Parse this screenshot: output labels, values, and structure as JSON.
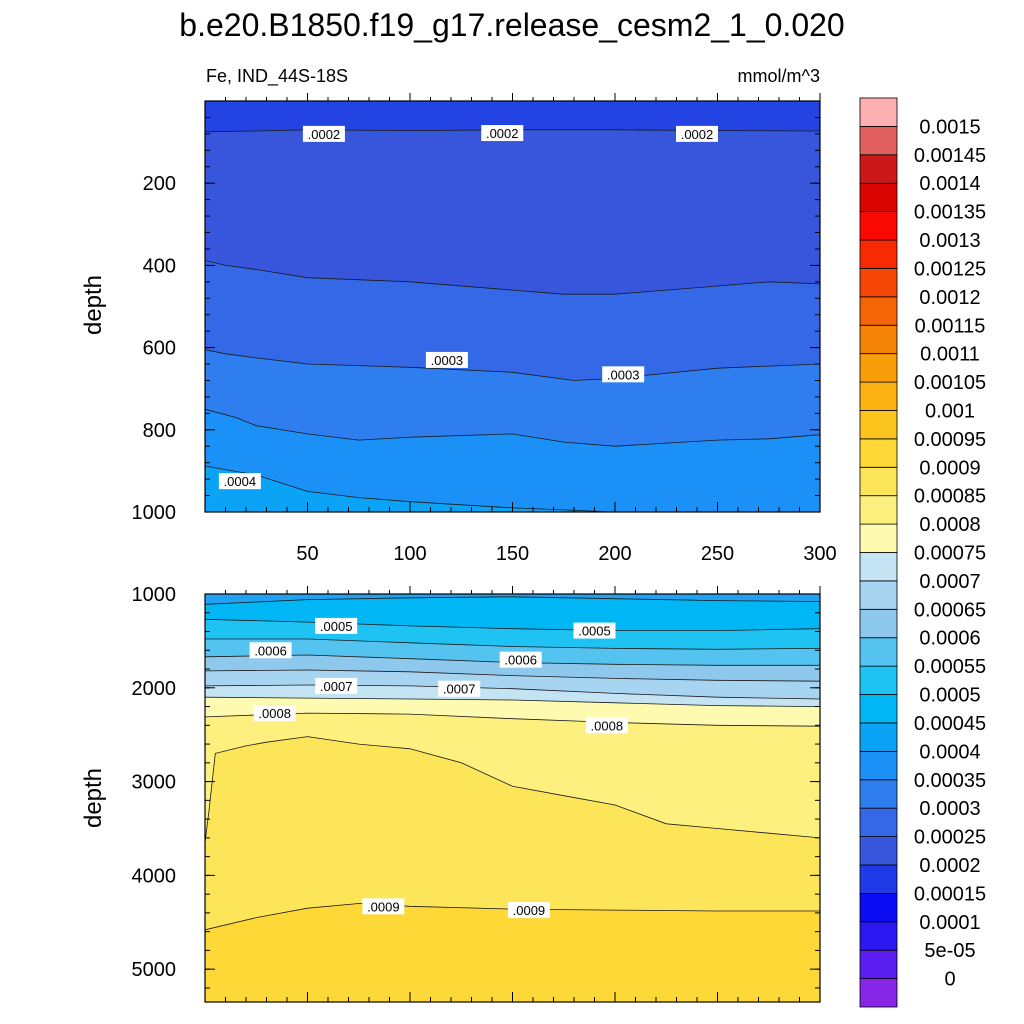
{
  "figure": {
    "title": "b.e20.B1850.f19_g17.release_cesm2_1_0.020",
    "subtitle_left": "Fe, IND_44S-18S",
    "subtitle_right": "mmol/m^3"
  },
  "chart_data": [
    {
      "type": "heatmap",
      "panel": "upper",
      "ylabel": "depth",
      "xlabel": "",
      "xlim": [
        0,
        300
      ],
      "ylim": [
        1000,
        0
      ],
      "x_ticks": [
        50,
        100,
        150,
        200,
        250,
        300
      ],
      "y_ticks": [
        200,
        400,
        600,
        800,
        1000
      ],
      "contours": [
        {
          "level": 0.0002,
          "label": ".0002",
          "points": [
            [
              0,
              75
            ],
            [
              25,
              73
            ],
            [
              50,
              70
            ],
            [
              100,
              72
            ],
            [
              150,
              70
            ],
            [
              200,
              70
            ],
            [
              250,
              72
            ],
            [
              300,
              73
            ]
          ]
        },
        {
          "level": 0.00025,
          "label": "",
          "points": [
            [
              0,
              388
            ],
            [
              10,
              400
            ],
            [
              25,
              410
            ],
            [
              50,
              430
            ],
            [
              100,
              440
            ],
            [
              150,
              460
            ],
            [
              175,
              470
            ],
            [
              200,
              470
            ],
            [
              250,
              450
            ],
            [
              275,
              440
            ],
            [
              300,
              445
            ]
          ]
        },
        {
          "level": 0.0003,
          "label": ".0003",
          "points": [
            [
              0,
              605
            ],
            [
              10,
              615
            ],
            [
              25,
              625
            ],
            [
              50,
              640
            ],
            [
              100,
              648
            ],
            [
              150,
              660
            ],
            [
              180,
              680
            ],
            [
              200,
              675
            ],
            [
              250,
              650
            ],
            [
              275,
              645
            ],
            [
              300,
              640
            ]
          ]
        },
        {
          "level": 0.00035,
          "label": "",
          "points": [
            [
              0,
              750
            ],
            [
              15,
              770
            ],
            [
              25,
              790
            ],
            [
              50,
              810
            ],
            [
              75,
              825
            ],
            [
              100,
              818
            ],
            [
              150,
              810
            ],
            [
              175,
              830
            ],
            [
              200,
              840
            ],
            [
              250,
              825
            ],
            [
              275,
              822
            ],
            [
              300,
              812
            ]
          ]
        },
        {
          "level": 0.0004,
          "label": ".0004",
          "points": [
            [
              0,
              888
            ],
            [
              25,
              910
            ],
            [
              50,
              950
            ],
            [
              75,
              965
            ],
            [
              100,
              975
            ],
            [
              150,
              990
            ],
            [
              175,
              995
            ],
            [
              200,
              1000
            ],
            [
              300,
              1000
            ]
          ]
        }
      ],
      "contour_labels": [
        {
          "text": ".0002",
          "x": 58,
          "y": 80
        },
        {
          "text": ".0002",
          "x": 145,
          "y": 78
        },
        {
          "text": ".0002",
          "x": 240,
          "y": 80
        },
        {
          "text": ".0003",
          "x": 118,
          "y": 630
        },
        {
          "text": ".0003",
          "x": 204,
          "y": 665
        },
        {
          "text": ".0004",
          "x": 17,
          "y": 925
        }
      ]
    },
    {
      "type": "heatmap",
      "panel": "lower",
      "ylabel": "depth",
      "xlabel": "",
      "xlim": [
        0,
        300
      ],
      "ylim": [
        5350,
        1000
      ],
      "y_ticks": [
        1000,
        2000,
        3000,
        4000,
        5000
      ],
      "contours": [
        {
          "level": 0.00045,
          "label": "",
          "points": [
            [
              0,
              1110
            ],
            [
              50,
              1060
            ],
            [
              100,
              1040
            ],
            [
              150,
              1030
            ],
            [
              200,
              1050
            ],
            [
              250,
              1070
            ],
            [
              300,
              1080
            ]
          ]
        },
        {
          "level": 0.0005,
          "label": ".0005",
          "points": [
            [
              0,
              1270
            ],
            [
              50,
              1300
            ],
            [
              100,
              1340
            ],
            [
              150,
              1370
            ],
            [
              200,
              1390
            ],
            [
              250,
              1390
            ],
            [
              300,
              1370
            ]
          ]
        },
        {
          "level": 0.00055,
          "label": "",
          "points": [
            [
              0,
              1480
            ],
            [
              50,
              1480
            ],
            [
              100,
              1520
            ],
            [
              150,
              1560
            ],
            [
              200,
              1580
            ],
            [
              250,
              1590
            ],
            [
              300,
              1580
            ]
          ]
        },
        {
          "level": 0.0006,
          "label": ".0006",
          "points": [
            [
              0,
              1670
            ],
            [
              50,
              1650
            ],
            [
              100,
              1690
            ],
            [
              150,
              1730
            ],
            [
              200,
              1750
            ],
            [
              250,
              1760
            ],
            [
              300,
              1760
            ]
          ]
        },
        {
          "level": 0.00065,
          "label": "",
          "points": [
            [
              0,
              1820
            ],
            [
              50,
              1810
            ],
            [
              100,
              1830
            ],
            [
              150,
              1870
            ],
            [
              200,
              1900
            ],
            [
              250,
              1920
            ],
            [
              300,
              1930
            ]
          ]
        },
        {
          "level": 0.0007,
          "label": ".0007",
          "points": [
            [
              0,
              1980
            ],
            [
              50,
              1970
            ],
            [
              100,
              1980
            ],
            [
              150,
              2010
            ],
            [
              200,
              2060
            ],
            [
              250,
              2100
            ],
            [
              300,
              2120
            ]
          ]
        },
        {
          "level": 0.00075,
          "label": "",
          "points": [
            [
              0,
              2100
            ],
            [
              50,
              2110
            ],
            [
              100,
              2120
            ],
            [
              150,
              2130
            ],
            [
              200,
              2160
            ],
            [
              250,
              2190
            ],
            [
              300,
              2200
            ]
          ]
        },
        {
          "level": 0.0008,
          "label": ".0008",
          "points": [
            [
              0,
              2310
            ],
            [
              25,
              2290
            ],
            [
              50,
              2270
            ],
            [
              100,
              2280
            ],
            [
              150,
              2330
            ],
            [
              200,
              2370
            ],
            [
              250,
              2400
            ],
            [
              300,
              2410
            ]
          ]
        },
        {
          "level": 0.00085,
          "label": "",
          "points": [
            [
              0,
              3650
            ],
            [
              2,
              3300
            ],
            [
              5,
              2700
            ],
            [
              20,
              2620
            ],
            [
              30,
              2580
            ],
            [
              50,
              2520
            ],
            [
              75,
              2600
            ],
            [
              100,
              2650
            ],
            [
              125,
              2800
            ],
            [
              150,
              3050
            ],
            [
              175,
              3150
            ],
            [
              200,
              3250
            ],
            [
              225,
              3450
            ],
            [
              250,
              3500
            ],
            [
              275,
              3550
            ],
            [
              300,
              3600
            ]
          ]
        },
        {
          "level": 0.0009,
          "label": ".0009",
          "points": [
            [
              0,
              4580
            ],
            [
              25,
              4450
            ],
            [
              50,
              4350
            ],
            [
              75,
              4300
            ],
            [
              100,
              4330
            ],
            [
              150,
              4360
            ],
            [
              200,
              4370
            ],
            [
              250,
              4380
            ],
            [
              300,
              4380
            ]
          ]
        }
      ],
      "contour_labels": [
        {
          "text": ".0005",
          "x": 64,
          "y": 1340
        },
        {
          "text": ".0005",
          "x": 190,
          "y": 1390
        },
        {
          "text": ".0006",
          "x": 32,
          "y": 1600
        },
        {
          "text": ".0006",
          "x": 154,
          "y": 1700
        },
        {
          "text": ".0007",
          "x": 64,
          "y": 1980
        },
        {
          "text": ".0007",
          "x": 124,
          "y": 2010
        },
        {
          "text": ".0008",
          "x": 34,
          "y": 2270
        },
        {
          "text": ".0008",
          "x": 196,
          "y": 2400
        },
        {
          "text": ".0009",
          "x": 87,
          "y": 4330
        },
        {
          "text": ".0009",
          "x": 158,
          "y": 4370
        }
      ]
    }
  ],
  "colorbar": {
    "levels": [
      "0",
      "5e-05",
      "0.0001",
      "0.00015",
      "0.0002",
      "0.00025",
      "0.0003",
      "0.00035",
      "0.0004",
      "0.00045",
      "0.0005",
      "0.00055",
      "0.0006",
      "0.00065",
      "0.0007",
      "0.00075",
      "0.0008",
      "0.00085",
      "0.0009",
      "0.00095",
      "0.001",
      "0.00105",
      "0.0011",
      "0.00115",
      "0.0012",
      "0.00125",
      "0.0013",
      "0.00135",
      "0.0014",
      "0.00145",
      "0.0015"
    ],
    "colors": [
      "#8826e8",
      "#5a1ef0",
      "#2a17f2",
      "#0a0cf4",
      "#1f3be8",
      "#3756dc",
      "#3468e6",
      "#2f7ef0",
      "#1b90f7",
      "#0aa3f6",
      "#00b6f5",
      "#1ec3f4",
      "#55c3f0",
      "#8ec8ec",
      "#a7d5f1",
      "#c4e4f4",
      "#fefbb0",
      "#fdf07e",
      "#fde55a",
      "#fdd836",
      "#fbc41c",
      "#fbb212",
      "#f79e09",
      "#f58305",
      "#f56505",
      "#f54605",
      "#f82a04",
      "#fa0a03",
      "#da0400",
      "#cc1818",
      "#e25f5f",
      "#fdb0b0"
    ]
  }
}
